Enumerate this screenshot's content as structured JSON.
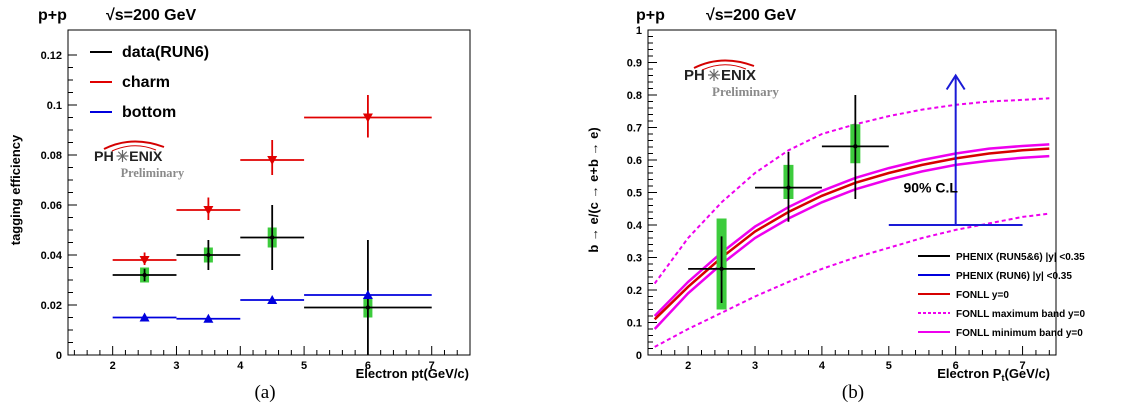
{
  "captions": [
    "(a)",
    "(b)"
  ],
  "logo": {
    "text_left": "PH",
    "text_right": "ENIX",
    "preliminary": "Preliminary"
  },
  "colors": {
    "data": "#000000",
    "charm": "#e00000",
    "bottom": "#0000dd",
    "sys": "#3dcc3d",
    "fonll": "#d60000",
    "band": "#ee00ee",
    "cl": "#1a1ad6"
  },
  "chart_data": [
    {
      "type": "scatter",
      "header": "p+p",
      "energy": "√s=200 GeV",
      "xlabel": "Electron pt(GeV/c)",
      "ylabel": "tagging efficiency",
      "xlim": [
        1.3,
        7.6
      ],
      "ylim": [
        0,
        0.13
      ],
      "xticks": [
        "2",
        "3",
        "4",
        "5",
        "6",
        "7"
      ],
      "yticks": [
        "0",
        "0.02",
        "0.04",
        "0.06",
        "0.08",
        "0.1",
        "0.12"
      ],
      "legend_position": "top-left",
      "series": [
        {
          "name": "data(RUN6)",
          "color": "#000000",
          "marker": "circle",
          "points": [
            {
              "x": 2.5,
              "xlo": 2,
              "xhi": 3,
              "y": 0.032,
              "ylo": 0.0295,
              "yhi": 0.0345,
              "sys": 0.003
            },
            {
              "x": 3.5,
              "xlo": 3,
              "xhi": 4,
              "y": 0.04,
              "ylo": 0.034,
              "yhi": 0.046,
              "sys": 0.003
            },
            {
              "x": 4.5,
              "xlo": 4,
              "xhi": 5,
              "y": 0.047,
              "ylo": 0.034,
              "yhi": 0.06,
              "sys": 0.004
            },
            {
              "x": 6.0,
              "xlo": 5,
              "xhi": 7,
              "y": 0.019,
              "ylo": -0.008,
              "yhi": 0.046,
              "sys": 0.004
            }
          ]
        },
        {
          "name": "charm",
          "color": "#e00000",
          "marker": "triangle-down",
          "points": [
            {
              "x": 2.5,
              "xlo": 2,
              "xhi": 3,
              "y": 0.038,
              "ylo": 0.036,
              "yhi": 0.041
            },
            {
              "x": 3.5,
              "xlo": 3,
              "xhi": 4,
              "y": 0.058,
              "ylo": 0.054,
              "yhi": 0.063
            },
            {
              "x": 4.5,
              "xlo": 4,
              "xhi": 5,
              "y": 0.078,
              "ylo": 0.072,
              "yhi": 0.086
            },
            {
              "x": 6.0,
              "xlo": 5,
              "xhi": 7,
              "y": 0.095,
              "ylo": 0.087,
              "yhi": 0.104
            }
          ]
        },
        {
          "name": "bottom",
          "color": "#0000dd",
          "marker": "triangle-up",
          "points": [
            {
              "x": 2.5,
              "xlo": 2,
              "xhi": 3,
              "y": 0.015
            },
            {
              "x": 3.5,
              "xlo": 3,
              "xhi": 4,
              "y": 0.0145
            },
            {
              "x": 4.5,
              "xlo": 4,
              "xhi": 5,
              "y": 0.022
            },
            {
              "x": 6.0,
              "xlo": 5,
              "xhi": 7,
              "y": 0.024
            }
          ]
        }
      ]
    },
    {
      "type": "scatter",
      "header": "p+p",
      "energy": "√s=200 GeV",
      "xlabel_main": "Electron P",
      "xlabel_sub": "t",
      "xlabel_tail": "(GeV/c)",
      "ylabel": "b → e/(c → e+b → e)",
      "xlim": [
        1.4,
        7.5
      ],
      "ylim": [
        0,
        1
      ],
      "xticks": [
        "2",
        "3",
        "4",
        "5",
        "6",
        "7"
      ],
      "yticks": [
        "0",
        "0.1",
        "0.2",
        "0.3",
        "0.4",
        "0.5",
        "0.6",
        "0.7",
        "0.8",
        "0.9",
        "1"
      ],
      "legend_position": "bottom-right",
      "data_points": [
        {
          "x": 2.5,
          "xlo": 2.0,
          "xhi": 3.0,
          "y": 0.265,
          "ylo": 0.16,
          "yhi": 0.365,
          "syslo": 0.14,
          "syshi": 0.42
        },
        {
          "x": 3.5,
          "xlo": 3.0,
          "xhi": 4.0,
          "y": 0.515,
          "ylo": 0.41,
          "yhi": 0.625,
          "syslo": 0.48,
          "syshi": 0.585
        },
        {
          "x": 4.5,
          "xlo": 4.0,
          "xhi": 5.0,
          "y": 0.642,
          "ylo": 0.48,
          "yhi": 0.8,
          "syslo": 0.59,
          "syshi": 0.71
        }
      ],
      "cl_limit": {
        "label": "90% C.L",
        "x": 6.0,
        "xlo": 5.0,
        "xhi": 7.0,
        "y_base": 0.4,
        "y_top": 0.86
      },
      "curves": {
        "x": [
          1.5,
          2.0,
          2.5,
          3.0,
          3.5,
          4.0,
          4.5,
          5.0,
          5.5,
          6.0,
          6.5,
          7.0,
          7.4
        ],
        "fonll_center": [
          0.11,
          0.21,
          0.3,
          0.38,
          0.44,
          0.49,
          0.53,
          0.56,
          0.585,
          0.605,
          0.62,
          0.63,
          0.635
        ],
        "max_band": [
          0.22,
          0.36,
          0.47,
          0.56,
          0.63,
          0.68,
          0.71,
          0.735,
          0.755,
          0.77,
          0.78,
          0.785,
          0.79
        ],
        "min_band_upper": [
          0.12,
          0.225,
          0.315,
          0.395,
          0.455,
          0.505,
          0.545,
          0.575,
          0.6,
          0.62,
          0.635,
          0.643,
          0.648
        ],
        "min_band_lower": [
          0.08,
          0.19,
          0.28,
          0.36,
          0.42,
          0.47,
          0.51,
          0.54,
          0.565,
          0.585,
          0.598,
          0.607,
          0.612
        ],
        "max_band_lower": [
          0.025,
          0.08,
          0.13,
          0.18,
          0.225,
          0.265,
          0.3,
          0.33,
          0.36,
          0.385,
          0.405,
          0.425,
          0.435
        ]
      },
      "legend": [
        {
          "label": "PHENIX (RUN5&6) |y| <0.35",
          "color": "#000000",
          "dash": false
        },
        {
          "label": "PHENIX (RUN6) |y| <0.35",
          "color": "#0000dd",
          "dash": false
        },
        {
          "label": "FONLL y=0",
          "color": "#d60000",
          "dash": false
        },
        {
          "label": "FONLL maximum band y=0",
          "color": "#ee00ee",
          "dash": true
        },
        {
          "label": "FONLL minimum band y=0",
          "color": "#ee00ee",
          "dash": false
        }
      ]
    }
  ]
}
